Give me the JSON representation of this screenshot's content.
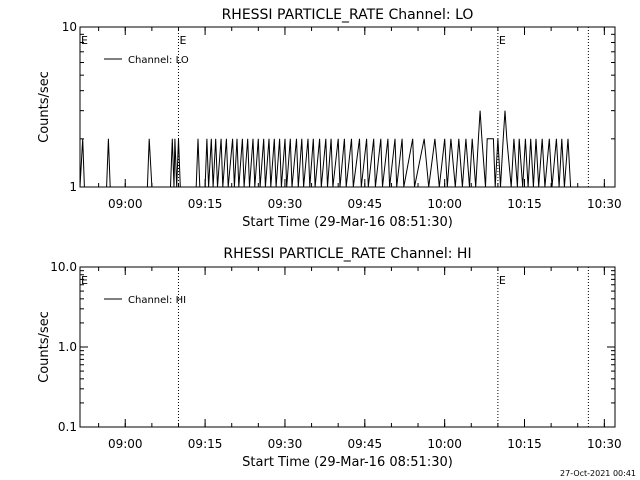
{
  "chart_data": [
    {
      "type": "line",
      "title": "RHESSI PARTICLE_RATE Channel: LO",
      "xlabel": "Start Time (29-Mar-16 08:51:30)",
      "ylabel": "Counts/sec",
      "y_scale": "log",
      "ylim": [
        1,
        10
      ],
      "y_ticks": [
        "1",
        "10"
      ],
      "x_ticks": [
        "09:00",
        "09:15",
        "09:30",
        "09:45",
        "10:00",
        "10:15",
        "10:30"
      ],
      "event_markers": [
        {
          "time": "09:10",
          "label": "E"
        },
        {
          "time": "10:10",
          "label": "E"
        },
        {
          "time": "10:27",
          "label": ""
        }
      ],
      "left_marker_label": "E",
      "legend": "top-left",
      "series": [
        {
          "name": "Channel: LO",
          "points": [
            [
              "08:51:30",
              1
            ],
            [
              "08:52:00",
              2
            ],
            [
              "08:52:20",
              1
            ],
            [
              "08:56:30",
              1
            ],
            [
              "08:56:50",
              2
            ],
            [
              "08:57:10",
              1
            ],
            [
              "09:04:10",
              1
            ],
            [
              "09:04:30",
              2
            ],
            [
              "09:05:00",
              1
            ],
            [
              "09:08:30",
              1
            ],
            [
              "09:08:50",
              2
            ],
            [
              "09:09:10",
              1
            ],
            [
              "09:09:20",
              2
            ],
            [
              "09:09:40",
              1
            ],
            [
              "09:10:00",
              2
            ],
            [
              "09:10:20",
              1
            ],
            [
              "09:13:20",
              1
            ],
            [
              "09:13:40",
              2
            ],
            [
              "09:14:00",
              1
            ],
            [
              "09:15:00",
              1
            ],
            [
              "09:15:20",
              2
            ],
            [
              "09:15:40",
              1
            ],
            [
              "09:16:10",
              2
            ],
            [
              "09:16:30",
              1
            ],
            [
              "09:17:00",
              2
            ],
            [
              "09:17:20",
              1
            ],
            [
              "09:18:00",
              2
            ],
            [
              "09:18:20",
              1
            ],
            [
              "09:19:00",
              2
            ],
            [
              "09:19:20",
              1
            ],
            [
              "09:20:10",
              2
            ],
            [
              "09:20:30",
              1
            ],
            [
              "09:21:00",
              2
            ],
            [
              "09:21:20",
              1
            ],
            [
              "09:22:00",
              2
            ],
            [
              "09:22:20",
              1
            ],
            [
              "09:23:00",
              2
            ],
            [
              "09:23:20",
              1
            ],
            [
              "09:24:00",
              2
            ],
            [
              "09:24:20",
              1
            ],
            [
              "09:25:00",
              2
            ],
            [
              "09:25:20",
              1
            ],
            [
              "09:26:00",
              2
            ],
            [
              "09:26:20",
              1
            ],
            [
              "09:27:00",
              2
            ],
            [
              "09:27:20",
              1
            ],
            [
              "09:28:00",
              2
            ],
            [
              "09:28:20",
              1
            ],
            [
              "09:29:00",
              2
            ],
            [
              "09:29:20",
              1
            ],
            [
              "09:30:00",
              2
            ],
            [
              "09:30:20",
              1
            ],
            [
              "09:31:00",
              2
            ],
            [
              "09:31:20",
              1
            ],
            [
              "09:32:10",
              2
            ],
            [
              "09:32:30",
              1
            ],
            [
              "09:33:10",
              2
            ],
            [
              "09:33:30",
              1
            ],
            [
              "09:34:20",
              2
            ],
            [
              "09:34:40",
              1
            ],
            [
              "09:35:20",
              2
            ],
            [
              "09:35:40",
              1
            ],
            [
              "09:36:30",
              2
            ],
            [
              "09:36:50",
              1
            ],
            [
              "09:37:40",
              2
            ],
            [
              "09:38:00",
              1
            ],
            [
              "09:38:40",
              2
            ],
            [
              "09:39:00",
              1
            ],
            [
              "09:40:00",
              2
            ],
            [
              "09:40:20",
              1
            ],
            [
              "09:41:10",
              2
            ],
            [
              "09:41:30",
              1
            ],
            [
              "09:42:30",
              2
            ],
            [
              "09:42:50",
              1
            ],
            [
              "09:44:00",
              2
            ],
            [
              "09:44:20",
              1
            ],
            [
              "09:45:20",
              2
            ],
            [
              "09:45:40",
              1
            ],
            [
              "09:46:40",
              2
            ],
            [
              "09:47:00",
              1
            ],
            [
              "09:48:00",
              2
            ],
            [
              "09:48:20",
              1
            ],
            [
              "09:49:20",
              2
            ],
            [
              "09:49:40",
              1
            ],
            [
              "09:50:40",
              2
            ],
            [
              "09:51:00",
              1
            ],
            [
              "09:52:00",
              2
            ],
            [
              "09:52:20",
              1
            ],
            [
              "09:54:00",
              2
            ],
            [
              "09:54:20",
              1
            ],
            [
              "09:56:10",
              2
            ],
            [
              "09:57:00",
              1
            ],
            [
              "09:58:10",
              2
            ],
            [
              "09:59:00",
              1
            ],
            [
              "10:00:00",
              2
            ],
            [
              "10:00:30",
              1
            ],
            [
              "10:01:10",
              2
            ],
            [
              "10:02:00",
              1
            ],
            [
              "10:02:40",
              2
            ],
            [
              "10:03:20",
              1
            ],
            [
              "10:04:00",
              2
            ],
            [
              "10:04:40",
              1
            ],
            [
              "10:05:10",
              2
            ],
            [
              "10:05:50",
              1
            ],
            [
              "10:06:20",
              2
            ],
            [
              "10:06:40",
              3
            ],
            [
              "10:07:00",
              2
            ],
            [
              "10:07:40",
              1
            ],
            [
              "10:08:00",
              2
            ],
            [
              "10:09:10",
              2
            ],
            [
              "10:09:30",
              1
            ],
            [
              "10:10:00",
              2
            ],
            [
              "10:10:30",
              1
            ],
            [
              "10:11:00",
              2
            ],
            [
              "10:11:20",
              3
            ],
            [
              "10:11:40",
              2
            ],
            [
              "10:12:30",
              1
            ],
            [
              "10:13:00",
              2
            ],
            [
              "10:13:40",
              1
            ],
            [
              "10:14:00",
              2
            ],
            [
              "10:14:40",
              1
            ],
            [
              "10:15:10",
              2
            ],
            [
              "10:15:40",
              1
            ],
            [
              "10:16:10",
              2
            ],
            [
              "10:16:40",
              1
            ],
            [
              "10:17:10",
              2
            ],
            [
              "10:17:40",
              1
            ],
            [
              "10:18:20",
              2
            ],
            [
              "10:18:50",
              1
            ],
            [
              "10:19:40",
              2
            ],
            [
              "10:20:10",
              1
            ],
            [
              "10:21:00",
              2
            ],
            [
              "10:21:30",
              1
            ],
            [
              "10:22:00",
              2
            ],
            [
              "10:22:30",
              1
            ],
            [
              "10:23:10",
              2
            ],
            [
              "10:23:40",
              1
            ]
          ]
        }
      ]
    },
    {
      "type": "line",
      "title": "RHESSI PARTICLE_RATE Channel: HI",
      "xlabel": "Start Time (29-Mar-16 08:51:30)",
      "ylabel": "Counts/sec",
      "y_scale": "log",
      "ylim": [
        0.1,
        10
      ],
      "y_ticks": [
        "0.1",
        "1.0",
        "10.0"
      ],
      "x_ticks": [
        "09:00",
        "09:15",
        "09:30",
        "09:45",
        "10:00",
        "10:15",
        "10:30"
      ],
      "event_markers": [
        {
          "time": "09:10",
          "label": ""
        },
        {
          "time": "10:10",
          "label": "E"
        },
        {
          "time": "10:27",
          "label": ""
        }
      ],
      "left_marker_label": "E",
      "legend": "top-left",
      "series": [
        {
          "name": "Channel: HI",
          "points": []
        }
      ]
    }
  ],
  "footer": {
    "timestamp": "27-Oct-2021 00:41"
  }
}
